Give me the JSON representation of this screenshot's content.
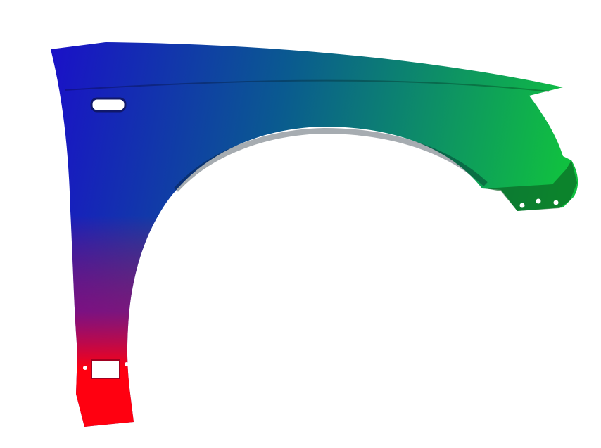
{
  "image": {
    "subject": "car-front-fender",
    "colors": {
      "background": "#ffffff",
      "top_left": "#1a1acc",
      "right": "#10c040",
      "bottom": "#ff0010",
      "mid": "#0a6a8a"
    }
  }
}
